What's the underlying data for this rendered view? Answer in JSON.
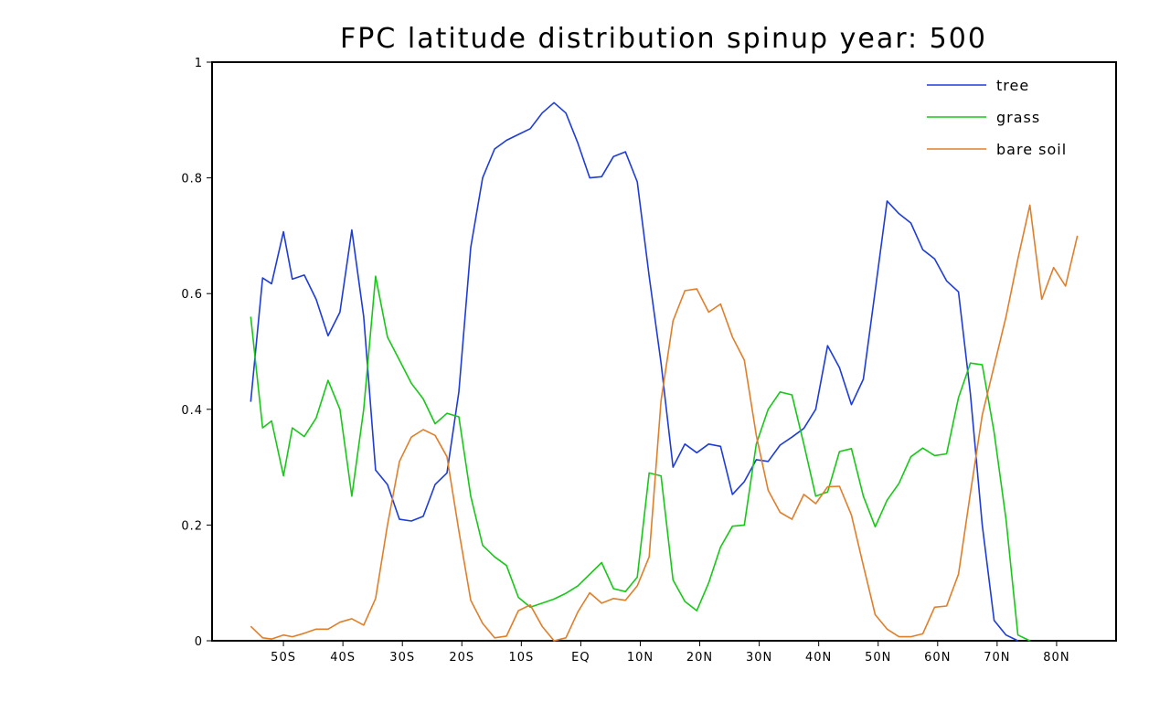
{
  "chart_data": {
    "type": "line",
    "title": "FPC latitude distribution  spinup year: 500",
    "xlabel": "",
    "ylabel": "",
    "xlim": [
      -62,
      90
    ],
    "ylim": [
      0,
      1
    ],
    "yticks": [
      0,
      0.2,
      0.4,
      0.6,
      0.8,
      1
    ],
    "ytick_labels": [
      "0",
      "0.2",
      "0.4",
      "0.6",
      "0.8",
      "1"
    ],
    "xticks": [
      -50,
      -40,
      -30,
      -20,
      -10,
      0,
      10,
      20,
      30,
      40,
      50,
      60,
      70,
      80
    ],
    "xtick_labels": [
      "50S",
      "40S",
      "30S",
      "20S",
      "10S",
      "EQ",
      "10N",
      "20N",
      "30N",
      "40N",
      "50N",
      "60N",
      "70N",
      "80N"
    ],
    "grid": false,
    "legend_position": "top-right",
    "x": [
      -55.5,
      -53.5,
      -52,
      -50,
      -48.5,
      -46.5,
      -44.5,
      -42.5,
      -40.5,
      -38.5,
      -36.5,
      -34.5,
      -32.5,
      -30.5,
      -28.5,
      -26.5,
      -24.5,
      -22.5,
      -20.5,
      -18.5,
      -16.5,
      -14.5,
      -12.5,
      -10.5,
      -8.5,
      -6.5,
      -4.5,
      -2.5,
      -0.5,
      1.5,
      3.5,
      5.5,
      7.5,
      9.5,
      11.5,
      13.5,
      15.5,
      17.5,
      19.5,
      21.5,
      23.5,
      25.5,
      27.5,
      29.5,
      31.5,
      33.5,
      35.5,
      37.5,
      39.5,
      41.5,
      43.5,
      45.5,
      47.5,
      49.5,
      51.5,
      53.5,
      55.5,
      57.5,
      59.5,
      61.5,
      63.5,
      65.5,
      67.5,
      69.5,
      71.5,
      73.5,
      75.5,
      77.5,
      79.5,
      81.5,
      83.5
    ],
    "series": [
      {
        "name": "tree",
        "color": "#1e3cd8",
        "values": [
          0.413,
          0.627,
          0.617,
          0.707,
          0.625,
          0.632,
          0.59,
          0.527,
          0.568,
          0.71,
          0.56,
          0.295,
          0.27,
          0.21,
          0.207,
          0.215,
          0.27,
          0.29,
          0.43,
          0.68,
          0.8,
          0.85,
          0.865,
          0.875,
          0.885,
          0.912,
          0.93,
          0.912,
          0.86,
          0.8,
          0.802,
          0.837,
          0.845,
          0.793,
          0.63,
          0.48,
          0.3,
          0.34,
          0.325,
          0.34,
          0.336,
          0.253,
          0.275,
          0.313,
          0.31,
          0.338,
          0.352,
          0.367,
          0.4,
          0.51,
          0.472,
          0.408,
          0.452,
          0.605,
          0.76,
          0.738,
          0.722,
          0.676,
          0.66,
          0.622,
          0.603,
          0.427,
          0.2,
          0.035,
          0.01,
          0.0,
          null,
          null,
          null,
          null,
          null
        ]
      },
      {
        "name": "grass",
        "color": "#18c818",
        "values": [
          0.56,
          0.368,
          0.38,
          0.285,
          0.368,
          0.353,
          0.385,
          0.45,
          0.4,
          0.25,
          0.4,
          0.63,
          0.525,
          0.485,
          0.445,
          0.418,
          0.375,
          0.393,
          0.387,
          0.25,
          0.165,
          0.145,
          0.13,
          0.075,
          0.058,
          0.065,
          0.072,
          0.082,
          0.095,
          0.115,
          0.135,
          0.09,
          0.085,
          0.11,
          0.29,
          0.285,
          0.105,
          0.068,
          0.052,
          0.1,
          0.162,
          0.198,
          0.2,
          0.34,
          0.4,
          0.43,
          0.425,
          0.34,
          0.25,
          0.257,
          0.327,
          0.332,
          0.25,
          0.197,
          0.243,
          0.272,
          0.318,
          0.333,
          0.32,
          0.323,
          0.42,
          0.48,
          0.477,
          0.36,
          0.21,
          0.01,
          0.0,
          null,
          null,
          null,
          null
        ]
      },
      {
        "name": "bare soil",
        "color": "#e07f2a",
        "values": [
          0.025,
          0.005,
          0.003,
          0.01,
          0.007,
          0.013,
          0.02,
          0.02,
          0.032,
          0.038,
          0.027,
          0.073,
          0.2,
          0.31,
          0.352,
          0.365,
          0.355,
          0.318,
          0.19,
          0.07,
          0.03,
          0.005,
          0.008,
          0.052,
          0.062,
          0.025,
          0.0,
          0.005,
          0.05,
          0.083,
          0.065,
          0.073,
          0.07,
          0.095,
          0.145,
          0.415,
          0.553,
          0.605,
          0.608,
          0.568,
          0.582,
          0.525,
          0.485,
          0.355,
          0.26,
          0.222,
          0.21,
          0.253,
          0.237,
          0.266,
          0.267,
          0.217,
          0.13,
          0.045,
          0.02,
          0.007,
          0.007,
          0.012,
          0.058,
          0.06,
          0.115,
          0.255,
          0.39,
          0.475,
          0.56,
          0.66,
          0.753,
          0.59,
          0.645,
          0.613,
          0.7
        ]
      }
    ]
  }
}
